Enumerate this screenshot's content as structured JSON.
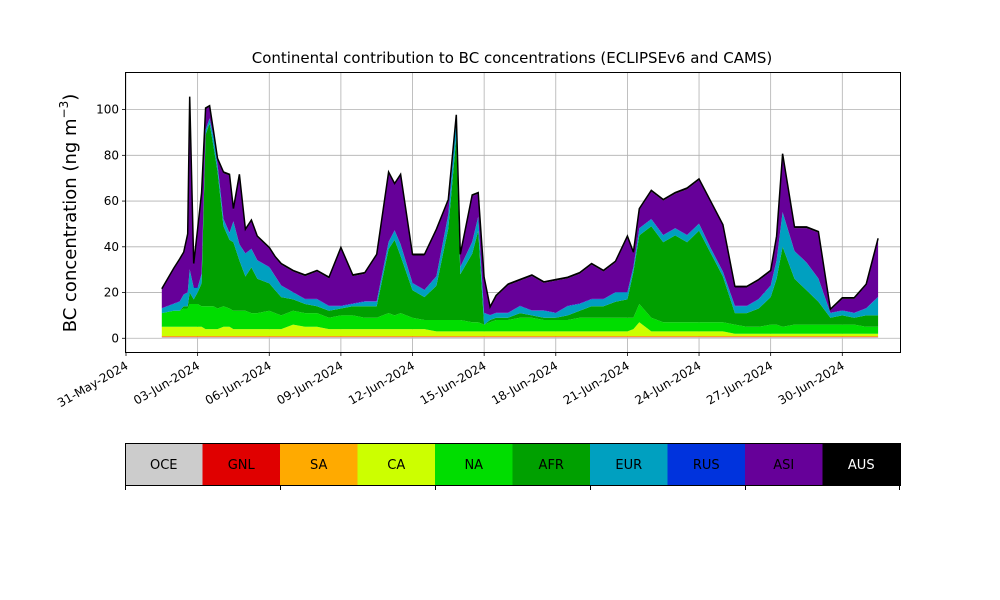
{
  "chart_data": {
    "type": "area",
    "stacked": true,
    "title": "Continental contribution to BC concentrations (ECLIPSEv6 and CAMS)",
    "ylabel_main": "BC concentration (ng m",
    "ylabel_sup": "−3",
    "ylabel_close": ")",
    "xlabel": "",
    "grid": true,
    "ylim": [
      -6,
      116
    ],
    "xlim": [
      "2024-05-31T00:00",
      "2024-07-02T10:00"
    ],
    "yticks": [
      0,
      20,
      40,
      60,
      80,
      100
    ],
    "xticks": [
      "31-May-2024",
      "03-Jun-2024",
      "06-Jun-2024",
      "09-Jun-2024",
      "12-Jun-2024",
      "15-Jun-2024",
      "18-Jun-2024",
      "21-Jun-2024",
      "24-Jun-2024",
      "27-Jun-2024",
      "30-Jun-2024"
    ],
    "x": [
      "2024-06-01T12:00",
      "2024-06-02T00:00",
      "2024-06-02T06:00",
      "2024-06-02T10:00",
      "2024-06-02T14:00",
      "2024-06-02T16:00",
      "2024-06-02T20:00",
      "2024-06-03T00:00",
      "2024-06-03T04:00",
      "2024-06-03T08:00",
      "2024-06-03T12:00",
      "2024-06-03T16:00",
      "2024-06-03T20:00",
      "2024-06-04T02:00",
      "2024-06-04T08:00",
      "2024-06-04T12:00",
      "2024-06-04T18:00",
      "2024-06-05T00:00",
      "2024-06-05T06:00",
      "2024-06-05T12:00",
      "2024-06-06T00:00",
      "2024-06-06T06:00",
      "2024-06-06T12:00",
      "2024-06-07T00:00",
      "2024-06-07T12:00",
      "2024-06-08T00:00",
      "2024-06-08T12:00",
      "2024-06-09T00:00",
      "2024-06-09T12:00",
      "2024-06-10T00:00",
      "2024-06-10T12:00",
      "2024-06-11T00:00",
      "2024-06-11T06:00",
      "2024-06-11T12:00",
      "2024-06-12T00:00",
      "2024-06-12T12:00",
      "2024-06-13T00:00",
      "2024-06-13T12:00",
      "2024-06-13T20:00",
      "2024-06-14T00:00",
      "2024-06-14T12:00",
      "2024-06-14T18:00",
      "2024-06-15T00:00",
      "2024-06-15T06:00",
      "2024-06-15T12:00",
      "2024-06-16T00:00",
      "2024-06-16T12:00",
      "2024-06-17T00:00",
      "2024-06-17T12:00",
      "2024-06-18T00:00",
      "2024-06-18T12:00",
      "2024-06-19T00:00",
      "2024-06-19T12:00",
      "2024-06-20T00:00",
      "2024-06-20T12:00",
      "2024-06-21T00:00",
      "2024-06-21T06:00",
      "2024-06-21T12:00",
      "2024-06-22T00:00",
      "2024-06-22T12:00",
      "2024-06-23T00:00",
      "2024-06-23T12:00",
      "2024-06-24T00:00",
      "2024-06-24T12:00",
      "2024-06-25T00:00",
      "2024-06-25T12:00",
      "2024-06-26T00:00",
      "2024-06-26T12:00",
      "2024-06-27T00:00",
      "2024-06-27T06:00",
      "2024-06-27T12:00",
      "2024-06-28T00:00",
      "2024-06-28T12:00",
      "2024-06-29T00:00",
      "2024-06-29T12:00",
      "2024-06-30T00:00",
      "2024-06-30T12:00",
      "2024-07-01T00:00",
      "2024-07-01T12:00"
    ],
    "series": [
      {
        "name": "OCE",
        "color": "#cccccc",
        "values": [
          0.5,
          0.5,
          0.5,
          0.5,
          0.5,
          0.5,
          0.5,
          0.5,
          0.5,
          0.5,
          0.5,
          0.5,
          0.5,
          0.5,
          0.5,
          0.5,
          0.5,
          0.5,
          0.5,
          0.5,
          0.5,
          0.5,
          0.5,
          0.5,
          0.5,
          0.5,
          0.5,
          0.5,
          0.5,
          0.5,
          0.5,
          0.5,
          0.5,
          0.5,
          0.5,
          0.5,
          0.5,
          0.5,
          0.5,
          0.5,
          0.5,
          0.5,
          0.5,
          0.5,
          0.5,
          0.5,
          0.5,
          0.5,
          0.5,
          0.5,
          0.5,
          0.5,
          0.5,
          0.5,
          0.5,
          0.5,
          0.5,
          0.5,
          0.5,
          0.5,
          0.5,
          0.5,
          0.5,
          0.5,
          0.5,
          0.5,
          0.5,
          0.5,
          0.5,
          0.5,
          0.5,
          0.5,
          0.5,
          0.5,
          0.5,
          0.5,
          0.5,
          0.5,
          0.5
        ]
      },
      {
        "name": "GNL",
        "color": "#e00000",
        "values": [
          0.2,
          0.2,
          0.2,
          0.2,
          0.2,
          0.2,
          0.2,
          0.2,
          0.2,
          0.2,
          0.2,
          0.2,
          0.2,
          0.2,
          0.2,
          0.2,
          0.2,
          0.2,
          0.2,
          0.2,
          0.2,
          0.2,
          0.2,
          0.2,
          0.2,
          0.2,
          0.2,
          0.2,
          0.2,
          0.2,
          0.2,
          0.2,
          0.2,
          0.2,
          0.2,
          0.2,
          0.2,
          0.2,
          0.2,
          0.2,
          0.2,
          0.2,
          0.2,
          0.2,
          0.2,
          0.2,
          0.2,
          0.2,
          0.2,
          0.2,
          0.2,
          0.2,
          0.2,
          0.2,
          0.2,
          0.2,
          0.2,
          0.2,
          0.2,
          0.2,
          0.2,
          0.2,
          0.2,
          0.2,
          0.2,
          0.2,
          0.2,
          0.2,
          0.2,
          0.2,
          0.2,
          0.2,
          0.2,
          0.2,
          0.2,
          0.2,
          0.2,
          0.2,
          0.2
        ]
      },
      {
        "name": "SA",
        "color": "#ffaa00",
        "values": [
          0.3,
          0.3,
          0.3,
          0.3,
          0.3,
          0.3,
          0.3,
          0.3,
          0.3,
          0.3,
          0.3,
          0.3,
          0.3,
          0.3,
          0.3,
          0.3,
          0.3,
          0.3,
          0.3,
          0.3,
          0.3,
          0.3,
          0.3,
          0.3,
          0.3,
          0.3,
          0.3,
          0.3,
          0.3,
          0.3,
          0.3,
          0.3,
          0.3,
          0.3,
          0.3,
          0.3,
          0.3,
          0.3,
          0.3,
          0.3,
          0.3,
          0.3,
          0.3,
          0.3,
          0.3,
          0.3,
          0.3,
          0.3,
          0.3,
          0.3,
          0.3,
          0.3,
          0.3,
          0.3,
          0.3,
          0.3,
          0.3,
          0.3,
          0.3,
          0.3,
          0.3,
          0.3,
          0.3,
          0.3,
          0.3,
          0.3,
          0.3,
          0.3,
          0.3,
          0.3,
          0.3,
          0.3,
          0.3,
          0.3,
          0.3,
          0.3,
          0.3,
          0.3,
          0.3
        ]
      },
      {
        "name": "CA",
        "color": "#ccff00",
        "values": [
          4,
          4,
          4,
          4,
          4,
          4,
          4,
          4,
          4,
          3,
          3,
          3,
          3,
          4,
          4,
          3,
          3,
          3,
          3,
          3,
          3,
          3,
          3,
          5,
          4,
          4,
          3,
          3,
          3,
          3,
          3,
          3,
          3,
          3,
          3,
          3,
          2,
          2,
          2,
          2,
          2,
          2,
          2,
          2,
          2,
          2,
          2,
          2,
          2,
          2,
          2,
          2,
          2,
          2,
          2,
          2,
          3,
          6,
          2,
          2,
          2,
          2,
          2,
          2,
          2,
          1,
          1,
          1,
          1,
          1,
          1,
          1,
          1,
          1,
          1,
          1,
          1,
          1,
          1
        ]
      },
      {
        "name": "NA",
        "color": "#00dd00",
        "values": [
          6,
          7,
          7,
          8,
          8,
          10,
          10,
          10,
          9,
          10,
          10,
          10,
          9,
          9,
          8,
          8,
          8,
          8,
          7,
          7,
          8,
          7,
          6,
          6,
          6,
          6,
          5,
          6,
          6,
          5,
          5,
          7,
          6,
          7,
          5,
          4,
          5,
          5,
          5,
          5,
          4,
          4,
          3,
          4,
          5,
          5,
          6,
          6,
          5,
          5,
          5,
          6,
          6,
          6,
          6,
          6,
          5,
          8,
          6,
          4,
          4,
          4,
          4,
          4,
          4,
          4,
          3,
          3,
          4,
          4,
          3,
          4,
          4,
          4,
          4,
          4,
          4,
          3,
          3
        ]
      },
      {
        "name": "AFR",
        "color": "#00a000",
        "values": [
          0,
          0,
          0,
          1,
          1,
          5,
          2,
          5,
          10,
          75,
          80,
          70,
          60,
          35,
          30,
          30,
          22,
          15,
          20,
          15,
          12,
          10,
          8,
          5,
          4,
          3,
          3,
          3,
          4,
          5,
          5,
          28,
          33,
          25,
          12,
          10,
          15,
          40,
          80,
          20,
          30,
          40,
          0,
          1,
          1,
          1,
          2,
          1,
          1,
          1,
          2,
          3,
          5,
          5,
          7,
          8,
          20,
          30,
          40,
          35,
          38,
          35,
          40,
          30,
          20,
          5,
          6,
          8,
          12,
          20,
          35,
          20,
          15,
          10,
          3,
          4,
          3,
          5,
          5
        ]
      },
      {
        "name": "EUR",
        "color": "#00a0c0",
        "values": [
          2,
          3,
          4,
          5,
          6,
          10,
          5,
          2,
          4,
          2,
          2,
          4,
          3,
          3,
          3,
          9,
          7,
          10,
          8,
          8,
          7,
          6,
          5,
          3,
          2,
          3,
          2,
          1,
          1,
          2,
          2,
          3,
          4,
          5,
          3,
          3,
          4,
          6,
          8,
          3,
          5,
          6,
          5,
          2,
          2,
          2,
          3,
          2,
          3,
          2,
          4,
          3,
          3,
          3,
          4,
          3,
          2,
          3,
          3,
          3,
          3,
          3,
          3,
          2,
          2,
          3,
          3,
          4,
          5,
          8,
          15,
          12,
          12,
          10,
          2,
          2,
          2,
          3,
          8
        ]
      },
      {
        "name": "RUS",
        "color": "#0033dd",
        "values": [
          0.2,
          0.2,
          0.2,
          0.2,
          0.2,
          0.2,
          0.2,
          0.2,
          0.2,
          0.2,
          0.2,
          0.2,
          0.2,
          0.2,
          0.2,
          0.2,
          0.2,
          0.2,
          0.2,
          0.2,
          0.2,
          0.2,
          0.2,
          0.2,
          0.2,
          0.2,
          0.2,
          0.2,
          0.2,
          0.2,
          0.2,
          0.2,
          0.2,
          0.2,
          0.2,
          0.2,
          0.2,
          0.2,
          0.2,
          0.2,
          0.2,
          0.2,
          0.2,
          0.2,
          0.2,
          0.2,
          0.2,
          0.2,
          0.2,
          0.2,
          0.2,
          0.2,
          0.2,
          0.2,
          0.2,
          0.2,
          0.2,
          0.2,
          0.2,
          0.2,
          0.2,
          0.2,
          0.2,
          0.2,
          0.2,
          0.2,
          0.2,
          0.2,
          0.2,
          0.2,
          0.2,
          0.2,
          0.2,
          0.2,
          0.2,
          0.2,
          0.2,
          0.2,
          0.2
        ]
      },
      {
        "name": "ASI",
        "color": "#660099",
        "values": [
          8,
          15,
          18,
          18,
          25,
          75,
          10,
          25,
          35,
          9,
          5,
          2,
          2,
          20,
          25,
          5,
          30,
          10,
          12,
          10,
          8,
          8,
          9,
          9,
          10,
          12,
          12,
          25,
          12,
          12,
          20,
          30,
          20,
          30,
          12,
          15,
          20,
          6,
          1,
          5,
          20,
          10,
          15,
          3,
          7,
          12,
          11,
          15,
          12,
          14,
          12,
          13,
          15,
          12,
          13,
          24,
          6,
          8,
          12,
          15,
          15,
          20,
          19,
          20,
          20,
          8,
          8,
          8,
          6,
          10,
          25,
          10,
          15,
          20,
          1,
          5,
          6,
          10,
          25
        ]
      },
      {
        "name": "AUS",
        "color": "#000000",
        "values": [
          0.5,
          0.5,
          0.5,
          0.5,
          0.5,
          0.5,
          0.5,
          0.5,
          0.5,
          0.5,
          0.5,
          0.5,
          0.5,
          0.5,
          0.5,
          0.5,
          0.5,
          0.5,
          0.5,
          0.5,
          0.5,
          0.5,
          0.5,
          0.5,
          0.5,
          0.5,
          0.5,
          0.5,
          0.5,
          0.5,
          0.5,
          0.5,
          0.5,
          0.5,
          0.5,
          0.5,
          0.5,
          0.5,
          0.5,
          0.5,
          0.5,
          0.5,
          0.5,
          0.5,
          0.5,
          0.5,
          0.5,
          0.5,
          0.5,
          0.5,
          0.5,
          0.5,
          0.5,
          0.5,
          0.5,
          0.5,
          0.5,
          0.5,
          0.5,
          0.5,
          0.5,
          0.5,
          0.5,
          0.5,
          0.5,
          0.5,
          0.5,
          0.5,
          0.5,
          0.5,
          0.5,
          0.5,
          0.5,
          0.5,
          0.5,
          0.5,
          0.5,
          0.5,
          0.5
        ]
      }
    ],
    "legend": {
      "placement": "bottom colorbar",
      "items": [
        {
          "label": "OCE",
          "color": "#cccccc",
          "text_color": "#000000"
        },
        {
          "label": "GNL",
          "color": "#e00000",
          "text_color": "#000000"
        },
        {
          "label": "SA",
          "color": "#ffaa00",
          "text_color": "#000000"
        },
        {
          "label": "CA",
          "color": "#ccff00",
          "text_color": "#000000"
        },
        {
          "label": "NA",
          "color": "#00dd00",
          "text_color": "#000000"
        },
        {
          "label": "AFR",
          "color": "#00a000",
          "text_color": "#000000"
        },
        {
          "label": "EUR",
          "color": "#00a0c0",
          "text_color": "#000000"
        },
        {
          "label": "RUS",
          "color": "#0033dd",
          "text_color": "#000000"
        },
        {
          "label": "ASI",
          "color": "#660099",
          "text_color": "#000000"
        },
        {
          "label": "AUS",
          "color": "#000000",
          "text_color": "#ffffff"
        }
      ]
    }
  }
}
